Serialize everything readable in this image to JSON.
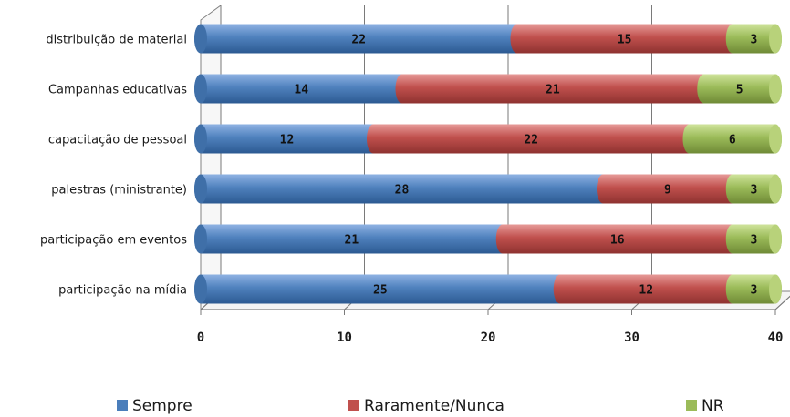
{
  "chart_data": {
    "type": "bar",
    "orientation": "horizontal",
    "stacked": true,
    "categories": [
      "distribuição de material",
      "Campanhas educativas",
      "capacitação de pessoal",
      "palestras (ministrante)",
      "participação em eventos",
      "participação na mídia"
    ],
    "series": [
      {
        "name": "Sempre",
        "values": [
          22,
          14,
          12,
          28,
          21,
          25
        ],
        "color": "#4a7ebb"
      },
      {
        "name": "Raramente/Nunca",
        "values": [
          15,
          21,
          22,
          9,
          16,
          12
        ],
        "color": "#c0504d"
      },
      {
        "name": "NR",
        "values": [
          3,
          5,
          6,
          3,
          3,
          3
        ],
        "color": "#9bbb59"
      }
    ],
    "xlim": [
      0,
      40
    ],
    "xticks": [
      "0",
      "10",
      "20",
      "30",
      "40"
    ],
    "grid": true,
    "legend": "bottom",
    "title": "",
    "xlabel": "",
    "ylabel": ""
  }
}
